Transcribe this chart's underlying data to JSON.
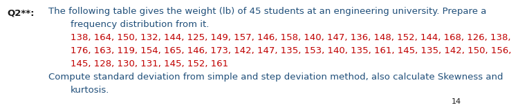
{
  "label": "Q2**:",
  "label_color": "#1a1a1a",
  "line1": "The following table gives the weight (lb) of 45 students at an engineering university. Prepare a",
  "line1_color": "#1f4e79",
  "line2": "frequency distribution from it.",
  "line2_color": "#1f4e79",
  "line3": "138, 164, 150, 132, 144, 125, 149, 157, 146, 158, 140, 147, 136, 148, 152, 144, 168, 126, 138,",
  "line3_color": "#c00000",
  "line4": "176, 163, 119, 154, 165, 146, 173, 142, 147, 135, 153, 140, 135, 161, 145, 135, 142, 150, 156,",
  "line4_color": "#c00000",
  "line5": "145, 128, 130, 131, 145, 152, 161",
  "line5_color": "#c00000",
  "line6": "Compute standard deviation from simple and step deviation method, also calculate Skewness and",
  "line6_color": "#1f4e79",
  "line7": "kurtosis.",
  "line7_color": "#1f4e79",
  "page_number": "14",
  "page_number_color": "#1a1a1a",
  "background_color": "#ffffff",
  "font_size": 9.5,
  "label_font_size": 9.5
}
